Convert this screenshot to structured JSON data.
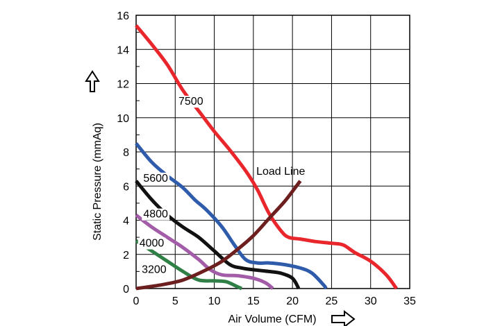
{
  "chart_data": {
    "type": "line",
    "xlabel": "Air Volume (CFM)",
    "ylabel": "Static Pressure (mmAq)",
    "xlim": [
      0,
      35
    ],
    "ylim": [
      0,
      16
    ],
    "x_ticks": [
      0,
      5,
      10,
      15,
      20,
      25,
      30,
      35
    ],
    "y_ticks": [
      0,
      2,
      4,
      6,
      8,
      10,
      12,
      14,
      16
    ],
    "grid": true,
    "legend": "none",
    "series": [
      {
        "name": "7500",
        "color": "#e8262b",
        "label_at": [
          7.0,
          11.0
        ],
        "points": [
          [
            0,
            15.4
          ],
          [
            2,
            14.3
          ],
          [
            4,
            13.1
          ],
          [
            6,
            11.6
          ],
          [
            8,
            10.4
          ],
          [
            10,
            9.2
          ],
          [
            12,
            8.1
          ],
          [
            14,
            6.9
          ],
          [
            15.5,
            5.8
          ],
          [
            17,
            4.4
          ],
          [
            18.5,
            3.4
          ],
          [
            19.5,
            3.0
          ],
          [
            21,
            2.9
          ],
          [
            23,
            2.75
          ],
          [
            25,
            2.65
          ],
          [
            26.5,
            2.55
          ],
          [
            28,
            2.1
          ],
          [
            30,
            1.6
          ],
          [
            32,
            0.8
          ],
          [
            33.3,
            0.0
          ]
        ]
      },
      {
        "name": "5600",
        "color": "#2f5bab",
        "label_at": [
          2.5,
          6.5
        ],
        "points": [
          [
            0,
            8.5
          ],
          [
            2,
            7.4
          ],
          [
            4,
            6.6
          ],
          [
            6,
            5.9
          ],
          [
            7.5,
            5.2
          ],
          [
            9,
            4.6
          ],
          [
            11,
            3.6
          ],
          [
            12.5,
            2.6
          ],
          [
            14,
            1.7
          ],
          [
            15.5,
            1.5
          ],
          [
            17,
            1.5
          ],
          [
            19,
            1.4
          ],
          [
            21,
            1.2
          ],
          [
            22.5,
            0.9
          ],
          [
            24,
            0.2
          ],
          [
            24.3,
            0.0
          ]
        ]
      },
      {
        "name": "4800",
        "color": "#111111",
        "label_at": [
          2.5,
          4.4
        ],
        "points": [
          [
            0,
            6.3
          ],
          [
            2,
            5.2
          ],
          [
            4,
            4.3
          ],
          [
            6,
            3.6
          ],
          [
            8,
            3.0
          ],
          [
            10,
            2.2
          ],
          [
            12,
            1.4
          ],
          [
            13.5,
            1.2
          ],
          [
            15,
            1.1
          ],
          [
            17,
            1.0
          ],
          [
            18.5,
            0.9
          ],
          [
            20,
            0.6
          ],
          [
            20.8,
            0.0
          ]
        ]
      },
      {
        "name": "4000",
        "color": "#a25ca8",
        "label_at": [
          2.0,
          2.7
        ],
        "points": [
          [
            0,
            4.3
          ],
          [
            2,
            3.6
          ],
          [
            4,
            3.0
          ],
          [
            6,
            2.4
          ],
          [
            8,
            1.7
          ],
          [
            9.5,
            1.1
          ],
          [
            11,
            0.8
          ],
          [
            13,
            0.75
          ],
          [
            15,
            0.6
          ],
          [
            16.5,
            0.35
          ],
          [
            17.5,
            0.0
          ]
        ]
      },
      {
        "name": "3200",
        "color": "#2f7f47",
        "label_at": [
          2.3,
          1.15
        ],
        "points": [
          [
            0,
            2.8
          ],
          [
            2,
            2.2
          ],
          [
            4,
            1.6
          ],
          [
            6,
            1.0
          ],
          [
            8,
            0.5
          ],
          [
            10,
            0.45
          ],
          [
            11.5,
            0.4
          ],
          [
            13,
            0.1
          ],
          [
            13.5,
            0.0
          ]
        ]
      },
      {
        "name": "Load Line",
        "color": "#6d1f1f",
        "label_at": [
          18.5,
          6.9
        ],
        "points": [
          [
            0,
            0.0
          ],
          [
            3,
            0.2
          ],
          [
            6,
            0.5
          ],
          [
            9,
            1.1
          ],
          [
            11,
            1.6
          ],
          [
            13,
            2.3
          ],
          [
            15,
            3.1
          ],
          [
            17,
            4.1
          ],
          [
            19,
            5.1
          ],
          [
            20.5,
            6.0
          ],
          [
            21,
            6.3
          ]
        ]
      }
    ]
  }
}
